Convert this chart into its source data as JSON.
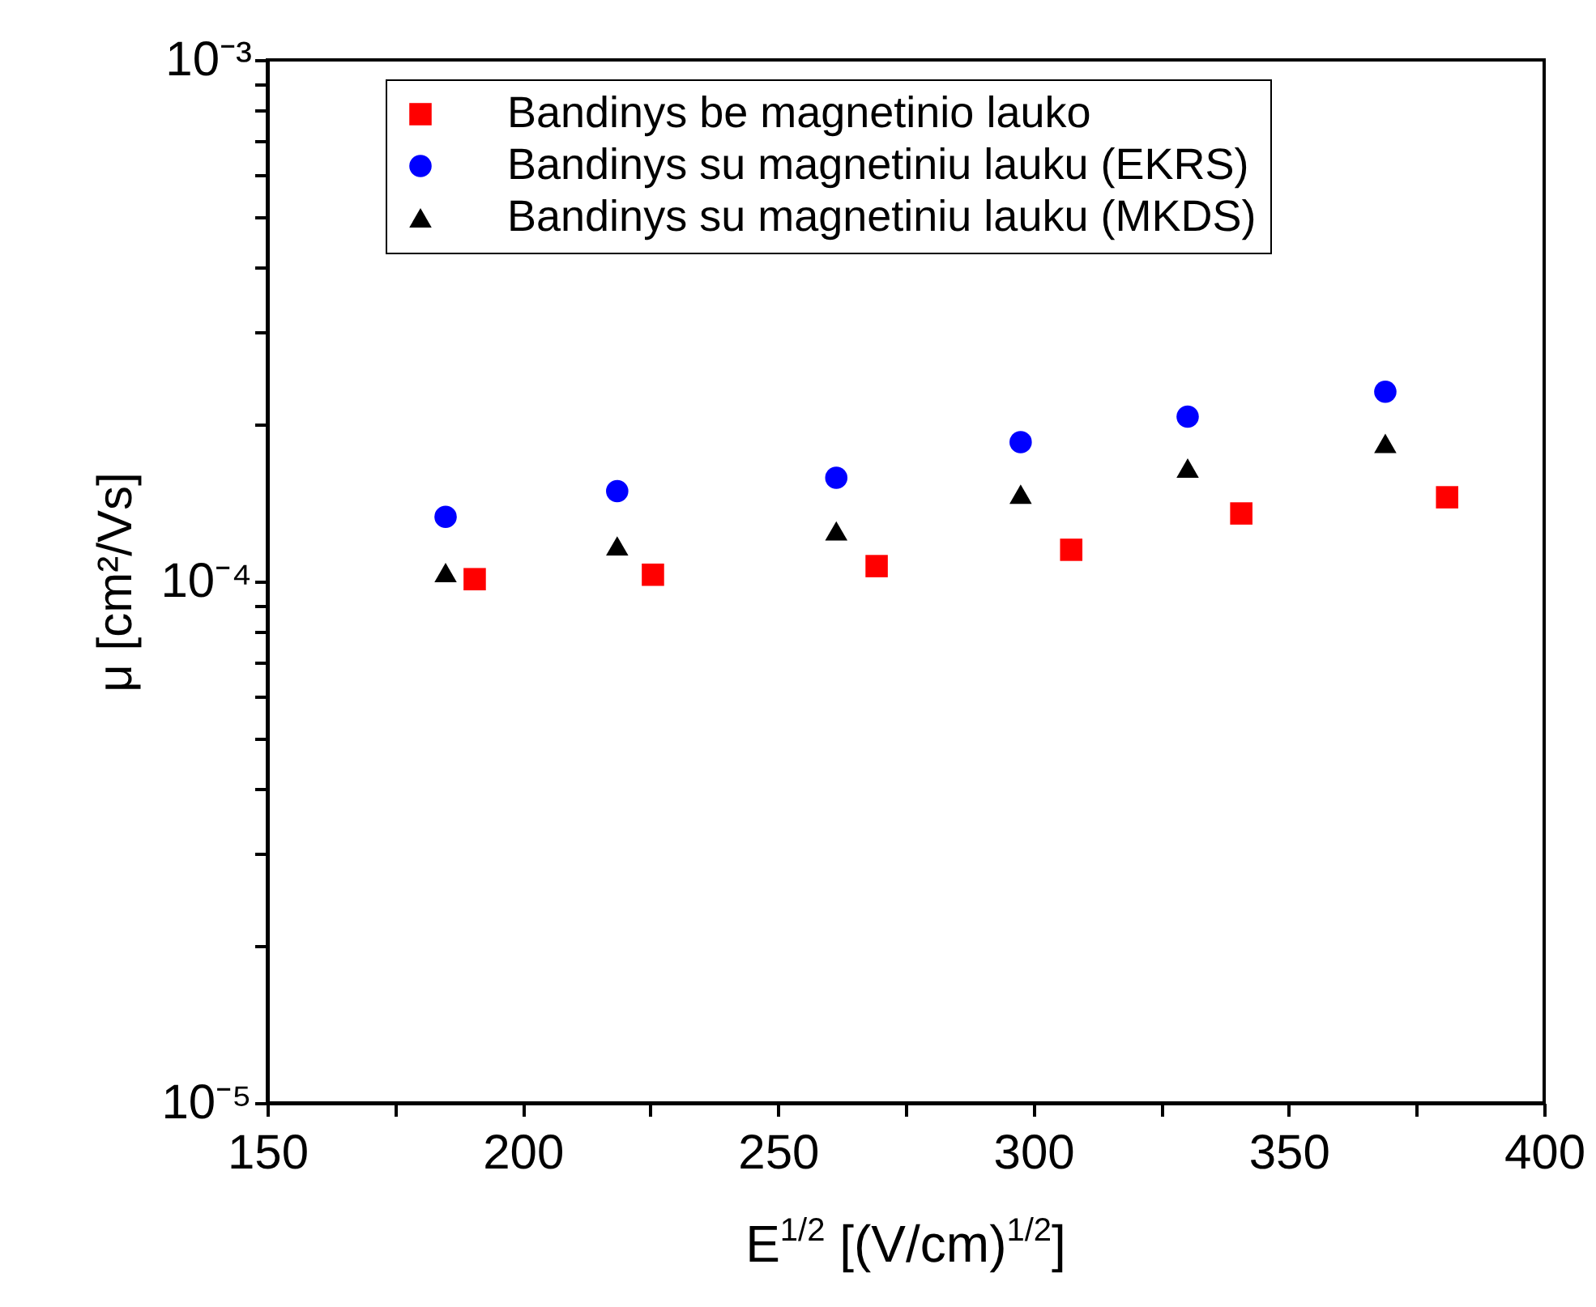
{
  "chart_data": {
    "type": "scatter",
    "xlabel": "E$^{1/2}$ [(V/cm)$^{1/2}$]",
    "ylabel": "μ [cm²/Vs]",
    "log": "y",
    "grid": false,
    "legend": "top",
    "xlim": [
      150,
      400
    ],
    "xticks": [
      150,
      {
        "value": 175,
        "label": null
      },
      200,
      {
        "value": 225,
        "label": null
      },
      250,
      {
        "value": 275,
        "label": null
      },
      300,
      {
        "value": 325,
        "label": null
      },
      350,
      {
        "value": 375,
        "label": null
      },
      400
    ],
    "ylim": [
      1e-05,
      0.001
    ],
    "yticks": [
      {
        "value": 1e-05,
        "label": "10⁻⁵"
      },
      {
        "value": 2e-05,
        "label": null
      },
      {
        "value": 3e-05,
        "label": null
      },
      {
        "value": 4e-05,
        "label": null
      },
      {
        "value": 5e-05,
        "label": null
      },
      {
        "value": 6e-05,
        "label": null
      },
      {
        "value": 7e-05,
        "label": null
      },
      {
        "value": 8e-05,
        "label": null
      },
      {
        "value": 9e-05,
        "label": null
      },
      {
        "value": 0.0001,
        "label": "10⁻⁴"
      },
      {
        "value": 0.0002,
        "label": null
      },
      {
        "value": 0.0003,
        "label": null
      },
      {
        "value": 0.0004,
        "label": null
      },
      {
        "value": 0.0005,
        "label": null
      },
      {
        "value": 0.0006,
        "label": null
      },
      {
        "value": 0.0007,
        "label": null
      },
      {
        "value": 0.0008,
        "label": null
      },
      {
        "value": 0.0009,
        "label": null
      },
      {
        "value": 0.001,
        "label": "10⁻³"
      }
    ],
    "series": [
      {
        "name": "Bandinys be magnetinio lauko",
        "color": "#ff0000",
        "marker": "square",
        "x": [
          190.6,
          225.5,
          269.3,
          307.4,
          340.7,
          381.0
        ],
        "values": [
          0.000101,
          0.000103,
          0.000107,
          0.000115,
          0.000135,
          0.000145
        ]
      },
      {
        "name": "Bandinys su magnetiniu lauku (EKRS)",
        "color": "#0000ff",
        "marker": "circle",
        "x": [
          184.9,
          218.5,
          261.4,
          297.5,
          330.2,
          368.9
        ],
        "values": [
          0.000133,
          0.000149,
          0.000158,
          0.000185,
          0.000207,
          0.000231
        ]
      },
      {
        "name": "Bandinys su magnetiniu lauku (MKDS)",
        "color": "#000000",
        "marker": "triangle",
        "x": [
          184.9,
          218.5,
          261.4,
          297.5,
          330.2,
          368.9
        ],
        "values": [
          0.000104,
          0.000117,
          0.000125,
          0.000147,
          0.000165,
          0.000184
        ]
      }
    ]
  }
}
